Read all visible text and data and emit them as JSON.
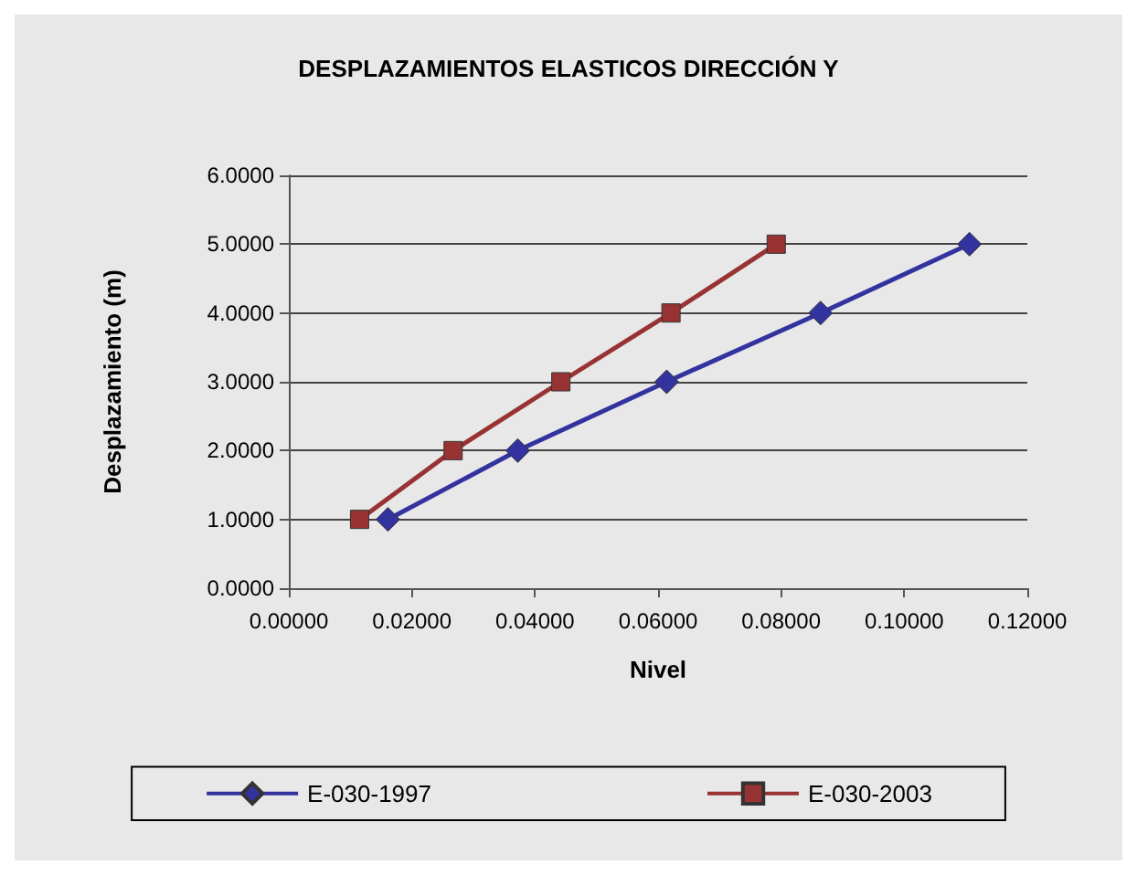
{
  "chart_data": {
    "type": "line",
    "title": "DESPLAZAMIENTOS ELASTICOS DIRECCIÓN Y",
    "xlabel": "Nivel",
    "ylabel": "Desplazamiento (m)",
    "series": [
      {
        "name": "E-030-1997",
        "color": "#3333a0",
        "marker": "diamond",
        "x": [
          0.0161,
          0.0372,
          0.0614,
          0.0864,
          0.1106
        ],
        "values": [
          1,
          2,
          3,
          4,
          5
        ]
      },
      {
        "name": "E-030-2003",
        "color": "#993333",
        "marker": "square",
        "x": [
          0.0115,
          0.0267,
          0.0442,
          0.0621,
          0.0792
        ],
        "values": [
          1,
          2,
          3,
          4,
          5
        ]
      }
    ],
    "xlim": [
      0,
      0.12
    ],
    "xticks": [
      {
        "value": 0,
        "label": "0.00000"
      },
      {
        "value": 0.02,
        "label": "0.02000"
      },
      {
        "value": 0.04,
        "label": "0.04000"
      },
      {
        "value": 0.06,
        "label": "0.06000"
      },
      {
        "value": 0.08,
        "label": "0.08000"
      },
      {
        "value": 0.1,
        "label": "0.10000"
      },
      {
        "value": 0.12,
        "label": "0.12000"
      }
    ],
    "ylim": [
      0,
      6
    ],
    "yticks": [
      {
        "value": 0,
        "label": "0.0000"
      },
      {
        "value": 1,
        "label": "1.0000"
      },
      {
        "value": 2,
        "label": "2.0000"
      },
      {
        "value": 3,
        "label": "3.0000"
      },
      {
        "value": 4,
        "label": "4.0000"
      },
      {
        "value": 5,
        "label": "5.0000"
      },
      {
        "value": 6,
        "label": "6.0000"
      }
    ],
    "grid": "y",
    "legend": "bottom"
  }
}
